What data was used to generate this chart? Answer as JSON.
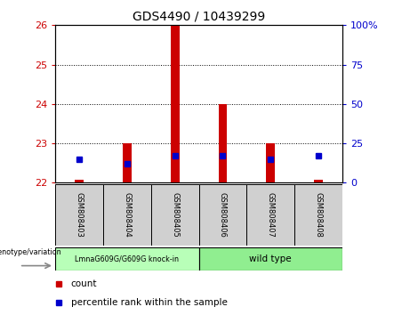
{
  "title": "GDS4490 / 10439299",
  "samples": [
    "GSM808403",
    "GSM808404",
    "GSM808405",
    "GSM808406",
    "GSM808407",
    "GSM808408"
  ],
  "ylim_left": [
    22,
    26
  ],
  "ylim_right": [
    0,
    100
  ],
  "yticks_left": [
    22,
    23,
    24,
    25,
    26
  ],
  "yticks_right": [
    0,
    25,
    50,
    75,
    100
  ],
  "red_bar_base": 22,
  "red_bar_tops": [
    22.07,
    23.0,
    26.0,
    24.0,
    23.0,
    22.07
  ],
  "blue_dot_pct": [
    15,
    12,
    17,
    17,
    15,
    17
  ],
  "group1_label": "LmnaG609G/G609G knock-in",
  "group2_label": "wild type",
  "group1_color": "#b8ffb8",
  "group2_color": "#90ee90",
  "sample_box_color": "#d0d0d0",
  "red_color": "#cc0000",
  "blue_color": "#0000cc",
  "legend_count_label": "count",
  "legend_pct_label": "percentile rank within the sample"
}
